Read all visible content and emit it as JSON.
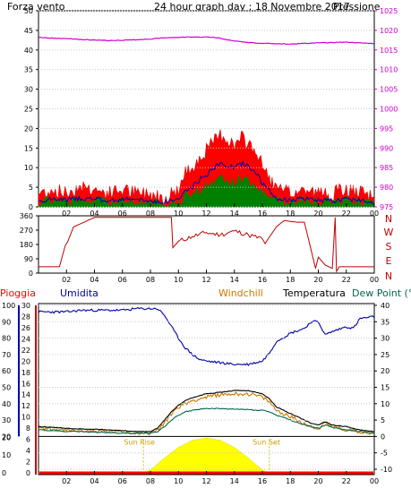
{
  "colors": {
    "wind": "#e00000",
    "gust_fill": "#ff0000",
    "avg_wind": "#0000aa",
    "wind_bar": "#008000",
    "pressure": "#cc00cc",
    "direction": "#c00000",
    "humidity": "#0000aa",
    "windchill": "#c87800",
    "temperature": "#000000",
    "dewpoint": "#006650",
    "sun": "#ffff00",
    "rain": "#ff0000",
    "rain_axis": "#cc0000"
  },
  "chart_data": [
    {
      "type": "line",
      "title": "24 hour graph day : 18 Novembre 2017",
      "left_label": "Forza vento",
      "right_label": "Pressione",
      "x_ticks": [
        "02",
        "04",
        "06",
        "08",
        "10",
        "12",
        "14",
        "16",
        "18",
        "20",
        "22",
        "00"
      ],
      "y_left": {
        "range": [
          0,
          50
        ],
        "ticks": [
          "0",
          "5",
          "10",
          "15",
          "20",
          "25",
          "30",
          "35",
          "40",
          "45",
          "50"
        ]
      },
      "y_right": {
        "range": [
          975,
          1025
        ],
        "ticks": [
          "975",
          "980",
          "985",
          "990",
          "995",
          "1000",
          "1005",
          "1010",
          "1015",
          "1020",
          "1025"
        ]
      },
      "x": [
        0,
        1,
        2,
        3,
        4,
        5,
        6,
        7,
        8,
        9,
        10,
        10.5,
        11,
        11.5,
        12,
        12.5,
        13,
        13.5,
        14,
        14.5,
        15,
        15.5,
        16,
        17,
        18,
        19,
        20,
        21,
        22,
        23,
        24
      ],
      "series": [
        {
          "name": "Pressione",
          "axis": "right",
          "values": [
            1018.2,
            1018,
            1017.9,
            1017.7,
            1017.5,
            1017.4,
            1017.5,
            1017.6,
            1017.8,
            1018.1,
            1018.2,
            1018.3,
            1018.3,
            1018.3,
            1018.3,
            1018.2,
            1018,
            1017.6,
            1017.3,
            1017.1,
            1016.9,
            1016.8,
            1016.7,
            1016.6,
            1016.5,
            1016.7,
            1016.8,
            1016.9,
            1017,
            1016.8,
            1016.6
          ]
        },
        {
          "name": "gust",
          "axis": "left",
          "values": [
            3,
            4,
            3,
            5,
            4,
            3,
            4,
            3,
            3,
            2,
            4,
            8,
            10,
            12,
            14,
            16,
            18,
            17,
            15,
            17,
            16,
            14,
            10,
            4,
            3,
            4,
            3,
            3,
            4,
            3,
            2
          ]
        },
        {
          "name": "average",
          "axis": "left",
          "values": [
            1.5,
            2,
            1.8,
            2.2,
            2,
            1.5,
            2,
            1.8,
            1.5,
            1.2,
            2,
            4,
            5,
            7,
            8,
            10,
            11,
            10.5,
            10,
            11,
            10.5,
            9,
            6,
            2,
            1.8,
            2,
            1.8,
            1.5,
            2,
            1.8,
            1.2
          ]
        },
        {
          "name": "wind",
          "axis": "left",
          "values": [
            1,
            1.5,
            1,
            2,
            1.5,
            1,
            1.5,
            1,
            1,
            0.5,
            1,
            2.5,
            3,
            4,
            5,
            6,
            7,
            6.5,
            6,
            7,
            6.5,
            5,
            3.5,
            1.5,
            1,
            1.5,
            1,
            1,
            1.5,
            1,
            0.5
          ]
        }
      ]
    },
    {
      "type": "scatter",
      "y_left": {
        "range": [
          0,
          360
        ],
        "ticks": [
          "0",
          "90",
          "180",
          "270",
          "360"
        ]
      },
      "y_right_ticks": [
        "N",
        "W",
        "S",
        "E",
        "N"
      ],
      "x_ticks": [
        "02",
        "04",
        "06",
        "08",
        "10",
        "12",
        "14",
        "16",
        "18",
        "20",
        "22",
        "00"
      ],
      "x": [
        0,
        1.2,
        1.5,
        1.9,
        2.1,
        2.5,
        3,
        4,
        5,
        6,
        7,
        8,
        9,
        9.5,
        9.6,
        10,
        11,
        12,
        13,
        14,
        15,
        16,
        16.2,
        16.3,
        17,
        17.4,
        17.6,
        18,
        18.5,
        19,
        19.8,
        20,
        20.5,
        21,
        21.2,
        21.3,
        21.5,
        22,
        23,
        24
      ],
      "series": [
        {
          "name": "direction",
          "values": [
            40,
            40,
            40,
            170,
            200,
            290,
            310,
            350,
            350,
            350,
            350,
            350,
            350,
            350,
            160,
            200,
            230,
            255,
            240,
            265,
            240,
            215,
            185,
            200,
            290,
            320,
            330,
            325,
            320,
            320,
            30,
            100,
            50,
            30,
            350,
            10,
            40,
            40,
            40,
            40
          ]
        }
      ]
    },
    {
      "type": "line",
      "legend": [
        "Pioggia",
        "Umidita",
        "Windchill",
        "Temperatura",
        "Dew Point (°C"
      ],
      "left_axes": [
        {
          "range": [
            20,
            100
          ],
          "ticks": [
            "20",
            "30",
            "40",
            "50",
            "60",
            "70",
            "80",
            "90",
            "100"
          ]
        },
        {
          "range": [
            0,
            30
          ],
          "ticks": [
            "0",
            "2",
            "4",
            "6",
            "8",
            "10",
            "12",
            "14",
            "16",
            "18",
            "20",
            "22",
            "24",
            "26",
            "28",
            "30"
          ]
        },
        {
          "range": [
            0,
            20
          ],
          "ticks": [
            "0",
            "2",
            "4",
            "6",
            "8",
            "10",
            "12",
            "14",
            "16",
            "18",
            "20"
          ]
        }
      ],
      "right_axis": {
        "range": [
          -10,
          40
        ],
        "ticks": [
          "-10",
          "-5",
          "0",
          "5",
          "10",
          "15",
          "20",
          "25",
          "30",
          "35",
          "40"
        ]
      },
      "x_ticks": [
        "02",
        "04",
        "06",
        "08",
        "10",
        "12",
        "14",
        "16",
        "18",
        "20",
        "22",
        "00"
      ],
      "annotations": [
        "Sun Rise",
        "Sun Set"
      ],
      "x": [
        0,
        1,
        2,
        3,
        4,
        5,
        6,
        7,
        8,
        8.5,
        9,
        9.5,
        10,
        10.5,
        11,
        11.5,
        12,
        13,
        14,
        15,
        15.5,
        16,
        16.5,
        17,
        18,
        19,
        19.5,
        20,
        20.5,
        21,
        22,
        22.5,
        23,
        24
      ],
      "series": [
        {
          "name": "Umidita",
          "values": [
            96,
            96,
            96,
            97,
            97,
            97,
            97,
            98,
            98,
            98,
            94,
            87,
            80,
            74,
            70,
            67,
            66,
            65,
            64,
            64,
            65,
            66,
            71,
            78,
            83,
            86,
            90,
            90,
            82,
            84,
            87,
            86,
            92,
            93
          ]
        },
        {
          "name": "Windchill",
          "values": [
            2.5,
            2.2,
            1.8,
            1.8,
            1.6,
            1.5,
            1.3,
            1.2,
            1,
            2,
            4,
            7,
            9,
            10,
            11,
            11.5,
            12,
            12.8,
            13,
            13,
            12.5,
            12,
            10.5,
            8,
            6,
            4,
            3,
            2.5,
            4,
            3,
            2,
            2,
            1.5,
            1
          ]
        },
        {
          "name": "Temperatura",
          "values": [
            3,
            2.8,
            2.5,
            2.3,
            2.2,
            2,
            1.8,
            1.5,
            1.5,
            2.5,
            5,
            7.5,
            9.5,
            11,
            11.8,
            12.5,
            13,
            13.5,
            14,
            14,
            13.5,
            13,
            11.5,
            9,
            7,
            5,
            4,
            3.5,
            4.5,
            3.5,
            3,
            2.5,
            2,
            1.5
          ]
        },
        {
          "name": "Dew Point (°C",
          "values": [
            2,
            1.8,
            1.5,
            1.5,
            1.3,
            1.2,
            1,
            1,
            1,
            1.5,
            3,
            5,
            6.5,
            7.5,
            8,
            8.3,
            8.5,
            8.5,
            8.3,
            8.2,
            8,
            8,
            7.5,
            6.5,
            5,
            3.5,
            3,
            2.5,
            3.5,
            2.8,
            2,
            1.8,
            1.5,
            1
          ]
        }
      ],
      "solar": {
        "x": [
          7.5,
          8,
          9,
          10,
          11,
          12,
          13,
          14,
          15,
          16,
          16.5
        ],
        "values": [
          0,
          0.5,
          2.5,
          4.3,
          5.5,
          5.9,
          5.5,
          4.3,
          2.5,
          0.5,
          0
        ]
      },
      "rain": {
        "total": 0
      }
    }
  ]
}
